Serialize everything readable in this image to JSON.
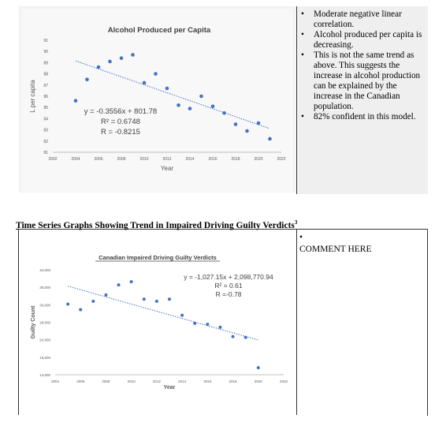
{
  "notes": {
    "bullets": [
      "Moderate negative linear correlation.",
      "Alcohol produced per capita is decreasing.",
      "This is not the same trend as above. This suggests the increase in alcohol production can be explained by the increase in the Canadian population.",
      "82% confident in this model."
    ]
  },
  "section": {
    "title": "Time Series Graphs Showing Trend in Impaired Driving Guilty Verdicts",
    "superscript": "3"
  },
  "comment": {
    "bullet": "•",
    "text": "COMMENT HERE"
  },
  "chart_data": [
    {
      "type": "scatter",
      "title": "Alcohol Produced per Capita",
      "xlabel": "Year",
      "ylabel": "L per capita",
      "xlim": [
        2002,
        2022
      ],
      "ylim": [
        81,
        91
      ],
      "xticks": [
        "2002",
        "2004",
        "2006",
        "2008",
        "2010",
        "2012",
        "2014",
        "2016",
        "2018",
        "2020",
        "2022"
      ],
      "yticks": [
        "81",
        "82",
        "83",
        "84",
        "85",
        "86",
        "87",
        "88",
        "89",
        "90",
        "91"
      ],
      "x": [
        2004,
        2005,
        2006,
        2007,
        2008,
        2009,
        2010,
        2011,
        2012,
        2013,
        2014,
        2015,
        2016,
        2017,
        2018,
        2019,
        2020,
        2021
      ],
      "y": [
        85.6,
        87.5,
        88.6,
        89.1,
        89.4,
        89.7,
        87.2,
        88.0,
        86.7,
        85.2,
        84.9,
        86.0,
        85.1,
        84.5,
        83.5,
        82.9,
        83.6,
        82.2
      ],
      "trendline": {
        "slope": -0.3556,
        "intercept": 801.78
      },
      "annotations": [
        "y = -0.3556x + 801.78",
        "R² = 0.6748",
        "R = -0.8215"
      ],
      "grid": false,
      "colors": {
        "points": "#4472c4",
        "trend": "#4472c4",
        "background": "#f8f8f8"
      }
    },
    {
      "type": "scatter",
      "title": "Canadian Impaired Driving Guilty Verdicts",
      "xlabel": "Year",
      "ylabel": "Guilty Count",
      "xlim": [
        2004,
        2022
      ],
      "ylim": [
        14000,
        44000
      ],
      "xticks": [
        "2004",
        "2006",
        "2008",
        "2010",
        "2012",
        "2014",
        "2016",
        "2018",
        "2020",
        "2022"
      ],
      "yticks": [
        "14,000",
        "19,000",
        "24,000",
        "29,000",
        "34,000",
        "39,000",
        "44,000"
      ],
      "x": [
        2005,
        2006,
        2007,
        2008,
        2009,
        2010,
        2011,
        2012,
        2013,
        2014,
        2015,
        2016,
        2017,
        2018,
        2019,
        2020
      ],
      "y": [
        34200,
        32600,
        35000,
        36800,
        39700,
        40600,
        35600,
        35000,
        35600,
        31000,
        28700,
        28400,
        27600,
        24900,
        24700,
        16000
      ],
      "trendline": {
        "slope": -1027.15,
        "intercept": 2098770.94
      },
      "annotations": [
        "y = -1,027.15x + 2,098,770.94",
        "R² = 0.61",
        "R =-0.78"
      ],
      "grid": false,
      "colors": {
        "points": "#4472c4",
        "trend": "#4472c4",
        "title_underline": "#000000"
      }
    }
  ]
}
